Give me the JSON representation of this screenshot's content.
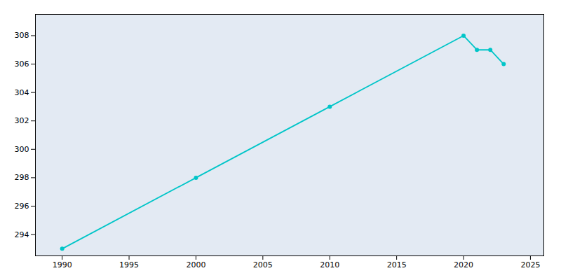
{
  "chart_data": {
    "type": "line",
    "x": [
      1990,
      2000,
      2010,
      2020,
      2021,
      2022,
      2023
    ],
    "values": [
      293,
      298,
      303,
      308,
      307,
      307,
      306
    ],
    "color": "#00C5C8",
    "marker": "circle",
    "xlim": [
      1988,
      2026
    ],
    "ylim": [
      292.5,
      309.5
    ],
    "xticks": [
      1990,
      1995,
      2000,
      2005,
      2010,
      2015,
      2020,
      2025
    ],
    "yticks": [
      294,
      296,
      298,
      300,
      302,
      304,
      306,
      308
    ],
    "grid": true
  }
}
